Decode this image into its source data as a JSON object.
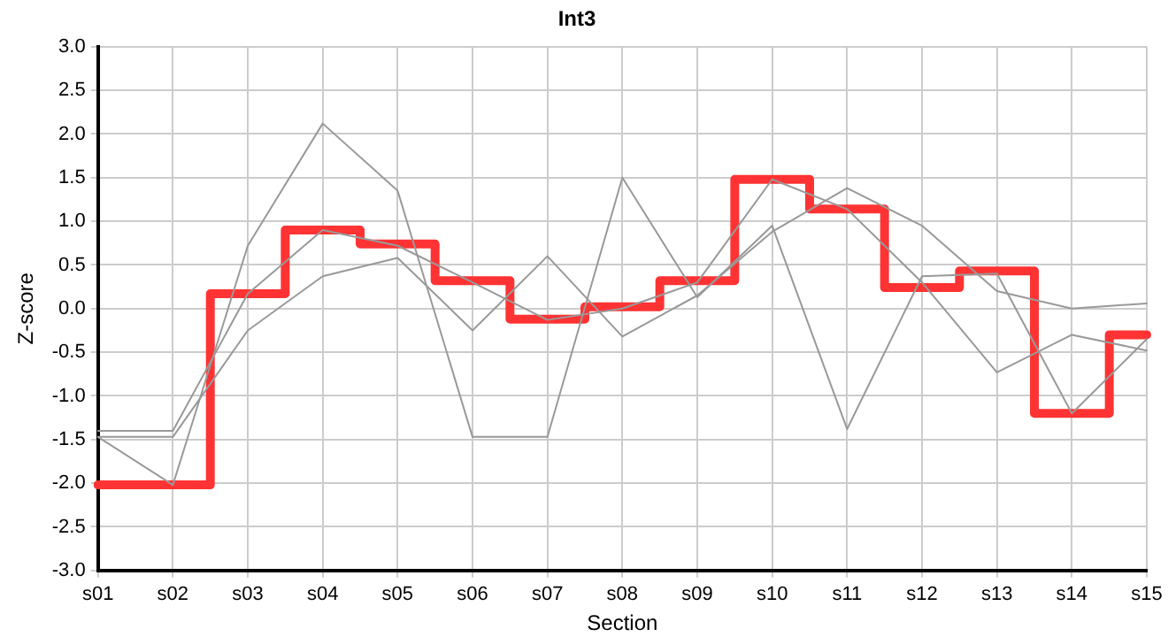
{
  "chart_data": {
    "type": "line",
    "title": "Int3",
    "xlabel": "Section",
    "ylabel": "Z-score",
    "categories": [
      "s01",
      "s02",
      "s03",
      "s04",
      "s05",
      "s06",
      "s07",
      "s08",
      "s09",
      "s10",
      "s11",
      "s12",
      "s13",
      "s14",
      "s15"
    ],
    "ylim": [
      -3,
      3
    ],
    "yticks": [
      {
        "value": -3,
        "label": "-3.0"
      },
      {
        "value": -2.5,
        "label": "-2.5"
      },
      {
        "value": -2,
        "label": "-2.0"
      },
      {
        "value": -1.5,
        "label": "-1.5"
      },
      {
        "value": -1,
        "label": "-1.0"
      },
      {
        "value": -0.5,
        "label": "-0.5"
      },
      {
        "value": 0,
        "label": "0.0"
      },
      {
        "value": 0.5,
        "label": "0.5"
      },
      {
        "value": 1,
        "label": "1.0"
      },
      {
        "value": 1.5,
        "label": "1.5"
      },
      {
        "value": 2,
        "label": "2.0"
      },
      {
        "value": 2.5,
        "label": "2.5"
      },
      {
        "value": 3,
        "label": "3.0"
      }
    ],
    "grid": true,
    "legend": false,
    "marker": "none",
    "series": [
      {
        "type": "line",
        "color": "#999999",
        "values": [
          -1.47,
          -2.02,
          0.72,
          2.12,
          1.35,
          -1.47,
          -1.47,
          1.5,
          0.13,
          0.95,
          -1.38,
          0.37,
          0.4,
          -1.2,
          -0.35
        ]
      },
      {
        "type": "line",
        "color": "#999999",
        "values": [
          -1.4,
          -1.4,
          0.17,
          0.9,
          0.72,
          0.3,
          -0.13,
          0.0,
          0.3,
          1.48,
          1.14,
          0.3,
          -0.73,
          -0.3,
          -0.48
        ]
      },
      {
        "type": "line",
        "color": "#999999",
        "values": [
          -1.47,
          -1.47,
          -0.25,
          0.37,
          0.58,
          -0.25,
          0.6,
          -0.32,
          0.15,
          0.88,
          1.38,
          0.95,
          0.2,
          0.0,
          0.06
        ]
      },
      {
        "type": "step",
        "color": "#ff3333",
        "values": [
          -2.02,
          -2.02,
          0.17,
          0.9,
          0.74,
          0.32,
          -0.12,
          0.02,
          0.32,
          1.48,
          1.14,
          0.24,
          0.43,
          -1.2,
          -0.3
        ]
      }
    ]
  }
}
